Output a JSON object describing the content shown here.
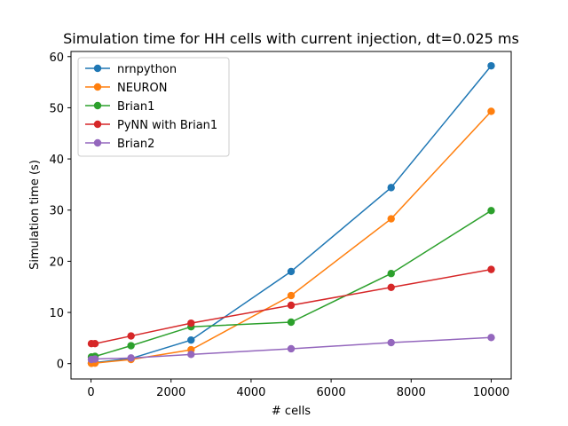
{
  "chart_data": {
    "type": "line",
    "title": "Simulation time for HH cells with current injection, dt=0.025 ms",
    "xlabel": "# cells",
    "ylabel": "Simulation time (s)",
    "xlim": [
      -500,
      10500
    ],
    "ylim": [
      -3,
      61
    ],
    "xticks": [
      0,
      2000,
      4000,
      6000,
      8000,
      10000
    ],
    "yticks": [
      0,
      10,
      20,
      30,
      40,
      50,
      60
    ],
    "legend_position": "top-left",
    "grid": false,
    "x": [
      10,
      100,
      1000,
      2500,
      5000,
      7500,
      10000
    ],
    "series": [
      {
        "name": "nrnpython",
        "color": "#1f77b4",
        "values": [
          0.1,
          0.2,
          1.0,
          4.6,
          18.0,
          34.4,
          58.2
        ]
      },
      {
        "name": "NEURON",
        "color": "#ff7f0e",
        "values": [
          0.05,
          0.1,
          0.8,
          2.7,
          13.3,
          28.3,
          49.3
        ]
      },
      {
        "name": "Brian1",
        "color": "#2ca02c",
        "values": [
          1.3,
          1.4,
          3.5,
          7.2,
          8.1,
          17.6,
          29.9
        ]
      },
      {
        "name": "PyNN with Brian1",
        "color": "#d62728",
        "values": [
          3.9,
          3.9,
          5.4,
          7.9,
          11.4,
          14.9,
          18.4
        ]
      },
      {
        "name": "Brian2",
        "color": "#9467bd",
        "values": [
          0.8,
          0.9,
          1.1,
          1.8,
          2.9,
          4.1,
          5.1
        ]
      }
    ]
  }
}
